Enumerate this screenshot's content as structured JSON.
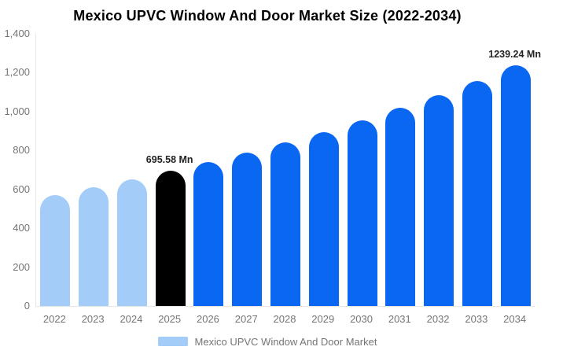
{
  "colors": {
    "historical": "#a4ccf8",
    "highlight": "#000000",
    "forecast": "#0a67f2",
    "axis_line": "#e6e6e6",
    "tick_text": "#757575",
    "data_label_text": "#222222",
    "title_text": "#000000"
  },
  "chart_data": {
    "type": "bar",
    "title": "Mexico UPVC Window And Door Market Size (2022-2034)",
    "xlabel": "",
    "ylabel": "",
    "unit": "Mn",
    "categories": [
      "2022",
      "2023",
      "2024",
      "2025",
      "2026",
      "2027",
      "2028",
      "2029",
      "2030",
      "2031",
      "2032",
      "2033",
      "2034"
    ],
    "values": [
      570,
      611,
      653,
      695.58,
      740,
      789,
      841,
      896,
      955,
      1018,
      1086,
      1158,
      1239.24
    ],
    "bar_roles": [
      "historical",
      "historical",
      "historical",
      "highlight",
      "forecast",
      "forecast",
      "forecast",
      "forecast",
      "forecast",
      "forecast",
      "forecast",
      "forecast",
      "forecast"
    ],
    "ylim": [
      0,
      1400
    ],
    "yticks": [
      0,
      200,
      400,
      600,
      800,
      1000,
      1200,
      1400
    ],
    "ytick_labels": [
      "0",
      "200",
      "400",
      "600",
      "800",
      "1,000",
      "1,200",
      "1,400"
    ],
    "grid": false,
    "legend_position": "bottom",
    "legend_entries": [
      "Mexico UPVC Window And Door Market"
    ],
    "data_labels": [
      {
        "index": 3,
        "text": "695.58 Mn"
      },
      {
        "index": 12,
        "text": "1239.24 Mn"
      }
    ]
  },
  "legend": {
    "label": "Mexico UPVC Window And Door Market",
    "swatch_color": "#a4ccf8"
  }
}
